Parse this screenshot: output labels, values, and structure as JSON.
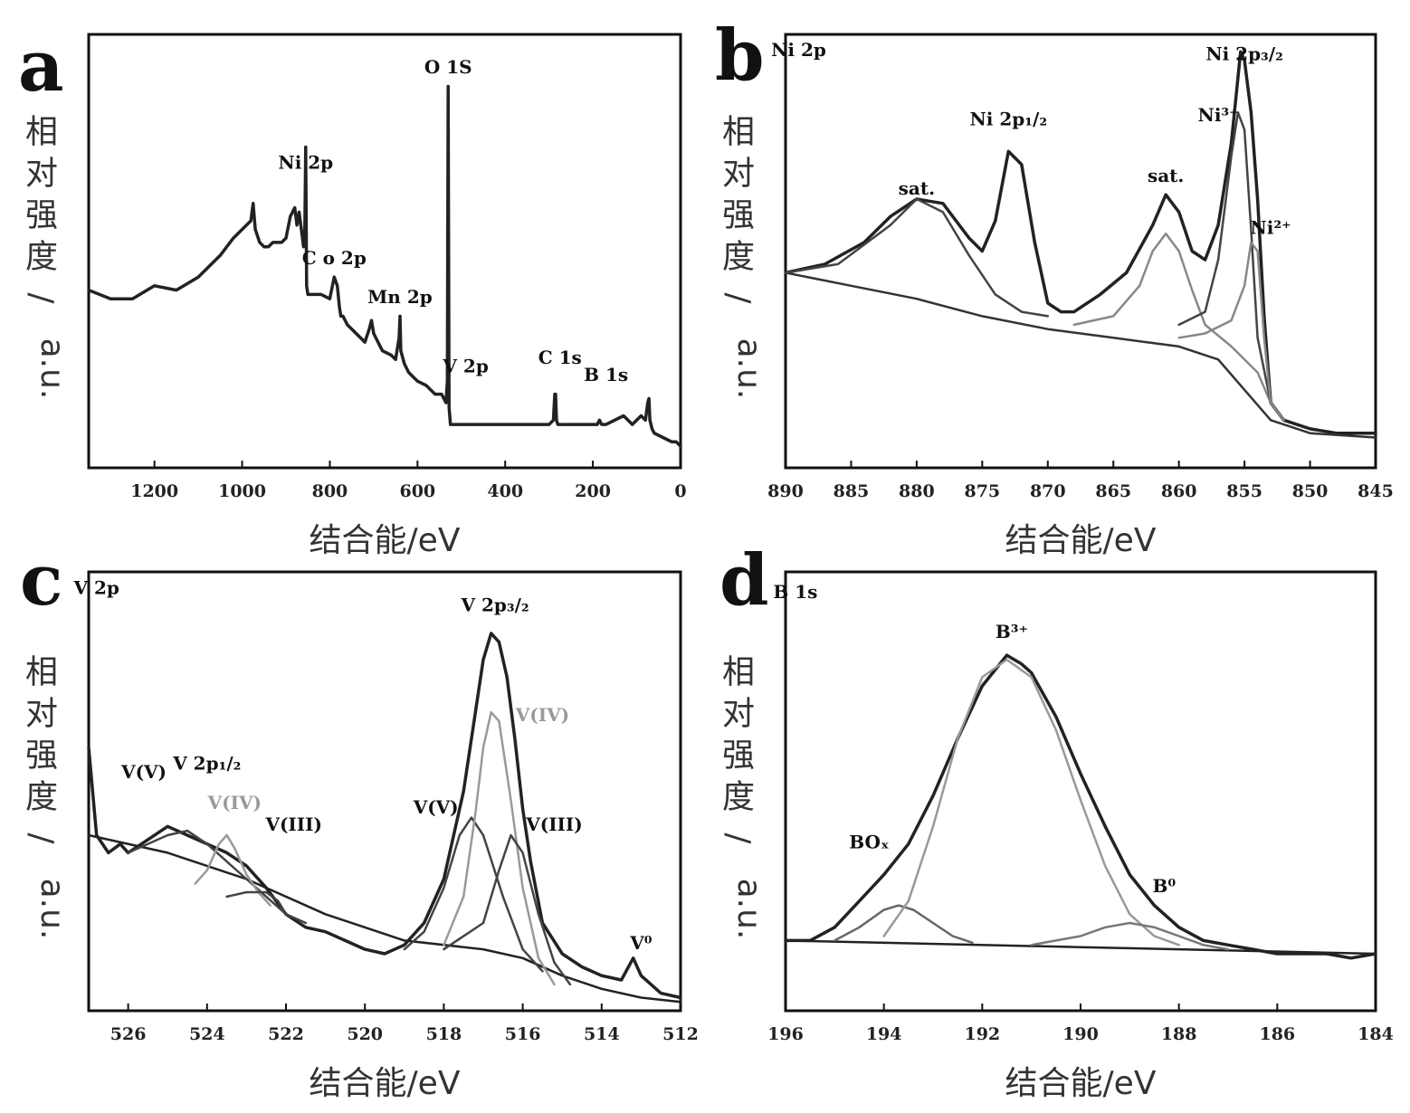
{
  "chart_data": [
    {
      "panel": "a",
      "type": "line",
      "xlabel": "结合能/eV",
      "ylabel": [
        "相",
        "对",
        "强",
        "度",
        "/",
        "a.u."
      ],
      "xlim": [
        1350,
        0
      ],
      "ylim": [
        0,
        100
      ],
      "xticks": [
        1200,
        1000,
        800,
        600,
        400,
        200,
        0
      ],
      "annotations": [
        {
          "text": "O 1S",
          "x": 530,
          "y": 91
        },
        {
          "text": "Ni 2p",
          "x": 855,
          "y": 69
        },
        {
          "text": "C o 2p",
          "x": 790,
          "y": 47
        },
        {
          "text": "Mn 2p",
          "x": 640,
          "y": 38
        },
        {
          "text": "V 2p",
          "x": 490,
          "y": 22
        },
        {
          "text": "C 1s",
          "x": 275,
          "y": 24
        },
        {
          "text": "B 1s",
          "x": 170,
          "y": 20
        }
      ],
      "series": [
        {
          "color": "#222",
          "x": [
            1350,
            1300,
            1250,
            1200,
            1150,
            1100,
            1050,
            1020,
            1000,
            990,
            980,
            975,
            970,
            960,
            950,
            940,
            930,
            910,
            900,
            890,
            880,
            875,
            870,
            865,
            860,
            857,
            855,
            853,
            850,
            845,
            840,
            820,
            800,
            790,
            783,
            778,
            775,
            770,
            760,
            740,
            720,
            710,
            705,
            700,
            690,
            680,
            660,
            650,
            642,
            640,
            638,
            630,
            620,
            600,
            580,
            560,
            545,
            540,
            535,
            532,
            530,
            528,
            525,
            520,
            500,
            480,
            460,
            440,
            420,
            400,
            380,
            350,
            320,
            300,
            290,
            287,
            285,
            283,
            280,
            260,
            240,
            220,
            200,
            190,
            185,
            180,
            170,
            150,
            130,
            120,
            110,
            100,
            90,
            80,
            75,
            72,
            70,
            65,
            60,
            40,
            20,
            10,
            0
          ],
          "y": [
            41,
            39,
            39,
            42,
            41,
            44,
            49,
            53,
            55,
            56,
            57,
            61,
            55,
            52,
            51,
            51,
            52,
            52,
            53,
            58,
            60,
            56,
            59,
            55,
            51,
            55,
            74,
            42,
            40,
            40,
            40,
            40,
            39,
            44,
            42,
            37,
            35,
            35,
            33,
            31,
            29,
            32,
            34,
            31,
            29,
            27,
            26,
            25,
            30,
            35,
            27,
            24,
            22,
            20,
            19,
            17,
            17,
            16,
            15,
            20,
            88,
            14,
            10,
            10,
            10,
            10,
            10,
            10,
            10,
            10,
            10,
            10,
            10,
            10,
            11,
            17,
            17,
            11,
            10,
            10,
            10,
            10,
            10,
            10,
            11,
            10,
            10,
            11,
            12,
            11,
            10,
            11,
            12,
            11,
            15,
            16,
            11,
            9,
            8,
            7,
            6,
            6,
            5
          ]
        }
      ]
    },
    {
      "panel": "b",
      "type": "line",
      "xlabel": "结合能/eV",
      "ylabel": [
        "相",
        "对",
        "强",
        "度",
        "/",
        "a.u."
      ],
      "xlim": [
        890,
        845
      ],
      "ylim": [
        0,
        100
      ],
      "xticks": [
        890,
        885,
        880,
        875,
        870,
        865,
        860,
        855,
        850,
        845
      ],
      "annotations": [
        {
          "text": "Ni 2p",
          "x": 889,
          "y": 95
        },
        {
          "text": "sat.",
          "x": 880,
          "y": 63
        },
        {
          "text": "Ni 2p₁/₂",
          "x": 873,
          "y": 79
        },
        {
          "text": "sat.",
          "x": 861,
          "y": 66
        },
        {
          "text": "Ni 2p₃/₂",
          "x": 855,
          "y": 94
        },
        {
          "text": "Ni³⁺",
          "x": 857,
          "y": 80
        },
        {
          "text": "Ni²⁺",
          "x": 853,
          "y": 54
        }
      ],
      "series": [
        {
          "color": "#222",
          "x": [
            890,
            887,
            884,
            882,
            880,
            878,
            876,
            875,
            874,
            873,
            872,
            871,
            870,
            869,
            868,
            866,
            864,
            862,
            861,
            860,
            859,
            858,
            857,
            856,
            855.3,
            855,
            854.5,
            854,
            853.5,
            853,
            852,
            850,
            848,
            845
          ],
          "y": [
            45,
            47,
            52,
            58,
            62,
            61,
            53,
            50,
            57,
            73,
            70,
            52,
            38,
            36,
            36,
            40,
            45,
            56,
            63,
            59,
            50,
            48,
            56,
            75,
            96,
            94,
            82,
            62,
            35,
            15,
            11,
            9,
            8,
            8
          ]
        },
        {
          "color": "#333",
          "x": [
            890,
            885,
            880,
            875,
            870,
            865,
            860,
            857,
            855,
            853,
            850,
            845
          ],
          "y": [
            45,
            42,
            39,
            35,
            32,
            30,
            28,
            25,
            18,
            11,
            8,
            7
          ]
        },
        {
          "color": "#444",
          "x": [
            890,
            886,
            882,
            880,
            878,
            876,
            874,
            872,
            870
          ],
          "y": [
            45,
            47,
            56,
            62,
            59,
            49,
            40,
            36,
            35
          ]
        },
        {
          "color": "#888",
          "x": [
            868,
            865,
            863,
            862,
            861,
            860,
            859,
            858,
            856,
            854,
            853
          ],
          "y": [
            33,
            35,
            42,
            50,
            54,
            50,
            41,
            33,
            28,
            22,
            15
          ]
        },
        {
          "color": "#444",
          "x": [
            860,
            858,
            857,
            856,
            855.5,
            855,
            854.5,
            854,
            853,
            852
          ],
          "y": [
            33,
            36,
            48,
            72,
            82,
            78,
            55,
            30,
            15,
            11
          ]
        },
        {
          "color": "#888",
          "x": [
            860,
            858,
            856,
            855,
            854.5,
            854,
            853.5,
            853,
            852
          ],
          "y": [
            30,
            31,
            34,
            42,
            52,
            50,
            30,
            15,
            11
          ]
        }
      ]
    },
    {
      "panel": "c",
      "type": "line",
      "xlabel": "结合能/eV",
      "ylabel": [
        "相",
        "对",
        "强",
        "度",
        "/",
        "a.u."
      ],
      "xlim": [
        527,
        512
      ],
      "ylim": [
        0,
        100
      ],
      "xticks": [
        526,
        524,
        522,
        520,
        518,
        516,
        514,
        512
      ],
      "annotations": [
        {
          "text": "V 2p",
          "x": 526.8,
          "y": 95
        },
        {
          "text": "V 2p₃/₂",
          "x": 516.7,
          "y": 91
        },
        {
          "text": "V(V)",
          "x": 525.6,
          "y": 53
        },
        {
          "text": "V 2p₁/₂",
          "x": 524,
          "y": 55
        },
        {
          "text": "V(IV)",
          "x": 523.3,
          "y": 46
        },
        {
          "text": "V(III)",
          "x": 521.8,
          "y": 41
        },
        {
          "text": "V(V)",
          "x": 518.2,
          "y": 45
        },
        {
          "text": "V(IV)",
          "x": 515.5,
          "y": 66
        },
        {
          "text": "V(III)",
          "x": 515.2,
          "y": 41
        },
        {
          "text": "V⁰",
          "x": 513,
          "y": 14
        }
      ],
      "series": [
        {
          "color": "#222",
          "x": [
            527,
            526.8,
            526.5,
            526.2,
            526,
            525.5,
            525,
            524.5,
            524,
            523.5,
            523,
            522.5,
            522,
            521.5,
            521,
            520.5,
            520,
            519.5,
            519,
            518.5,
            518,
            517.5,
            517.2,
            517,
            516.8,
            516.6,
            516.4,
            516.2,
            516,
            515.8,
            515.5,
            515,
            514.5,
            514,
            513.5,
            513.2,
            513,
            512.5,
            512
          ],
          "y": [
            60,
            40,
            36,
            38,
            36,
            39,
            42,
            40,
            38,
            36,
            33,
            28,
            22,
            19,
            18,
            16,
            14,
            13,
            15,
            20,
            30,
            50,
            68,
            80,
            86,
            84,
            76,
            62,
            46,
            34,
            20,
            13,
            10,
            8,
            7,
            12,
            8,
            4,
            3
          ]
        },
        {
          "color": "#222",
          "x": [
            527,
            525,
            523,
            521,
            519,
            517,
            516,
            515,
            514,
            513,
            512
          ],
          "y": [
            40,
            36,
            30,
            22,
            16,
            14,
            12,
            8,
            5,
            3,
            2
          ]
        },
        {
          "color": "#444",
          "x": [
            526,
            525,
            524.5,
            524,
            523.5,
            523,
            522.5,
            522
          ],
          "y": [
            36,
            40,
            41,
            38,
            34,
            30,
            26,
            22
          ]
        },
        {
          "color": "#999",
          "x": [
            524.3,
            524,
            523.7,
            523.5,
            523.3,
            523,
            522.7,
            522.4
          ],
          "y": [
            29,
            32,
            38,
            40,
            37,
            31,
            27,
            24
          ]
        },
        {
          "color": "#444",
          "x": [
            523.5,
            523,
            522.5,
            522.2,
            522,
            521.5
          ],
          "y": [
            26,
            27,
            27,
            25,
            22,
            20
          ]
        },
        {
          "color": "#444",
          "x": [
            519,
            518.5,
            518,
            517.6,
            517.3,
            517,
            516.5,
            516,
            515.5
          ],
          "y": [
            14,
            18,
            28,
            40,
            44,
            40,
            26,
            14,
            9
          ]
        },
        {
          "color": "#999",
          "x": [
            518,
            517.5,
            517.2,
            517,
            516.8,
            516.6,
            516.3,
            516,
            515.6,
            515.2
          ],
          "y": [
            15,
            26,
            45,
            60,
            68,
            66,
            48,
            28,
            12,
            6
          ]
        },
        {
          "color": "#444",
          "x": [
            518,
            517,
            516.6,
            516.3,
            516,
            515.6,
            515.2,
            514.8
          ],
          "y": [
            14,
            20,
            32,
            40,
            36,
            22,
            11,
            6
          ]
        }
      ]
    },
    {
      "panel": "d",
      "type": "line",
      "xlabel": "结合能/eV",
      "ylabel": [
        "相",
        "对",
        "强",
        "度",
        "/",
        "a.u."
      ],
      "xlim": [
        196,
        184
      ],
      "ylim": [
        0,
        100
      ],
      "xticks": [
        196,
        194,
        192,
        190,
        188,
        186,
        184
      ],
      "annotations": [
        {
          "text": "B 1s",
          "x": 195.8,
          "y": 94
        },
        {
          "text": "B³⁺",
          "x": 191.4,
          "y": 85
        },
        {
          "text": "BOₓ",
          "x": 194.3,
          "y": 37
        },
        {
          "text": "B⁰",
          "x": 188.3,
          "y": 27
        }
      ],
      "series": [
        {
          "color": "#222",
          "x": [
            196,
            195.5,
            195,
            194.5,
            194,
            193.5,
            193,
            192.5,
            192,
            191.5,
            191.2,
            191,
            190.5,
            190,
            189.5,
            189,
            188.5,
            188,
            187.5,
            187,
            186.5,
            186,
            185.5,
            185,
            184.5,
            184
          ],
          "y": [
            16,
            16,
            19,
            25,
            31,
            38,
            49,
            62,
            74,
            81,
            79,
            77,
            67,
            54,
            42,
            31,
            24,
            19,
            16,
            15,
            14,
            13,
            13,
            13,
            12,
            13
          ]
        },
        {
          "color": "#222",
          "x": [
            196,
            190,
            184
          ],
          "y": [
            16,
            14.5,
            13
          ]
        },
        {
          "color": "#666",
          "x": [
            195,
            194.5,
            194,
            193.7,
            193.4,
            193,
            192.6,
            192.2
          ],
          "y": [
            16,
            19,
            23,
            24,
            23,
            20,
            17,
            15.5
          ]
        },
        {
          "color": "#999",
          "x": [
            194,
            193.5,
            193,
            192.5,
            192,
            191.5,
            191,
            190.5,
            190,
            189.5,
            189,
            188.5,
            188
          ],
          "y": [
            17,
            25,
            42,
            62,
            76,
            80,
            76,
            64,
            48,
            33,
            22,
            17,
            15
          ]
        },
        {
          "color": "#777",
          "x": [
            191,
            190.5,
            190,
            189.5,
            189,
            188.5,
            188,
            187.5,
            187
          ],
          "y": [
            15,
            16,
            17,
            19,
            20,
            19,
            17,
            15,
            14
          ]
        }
      ]
    }
  ]
}
